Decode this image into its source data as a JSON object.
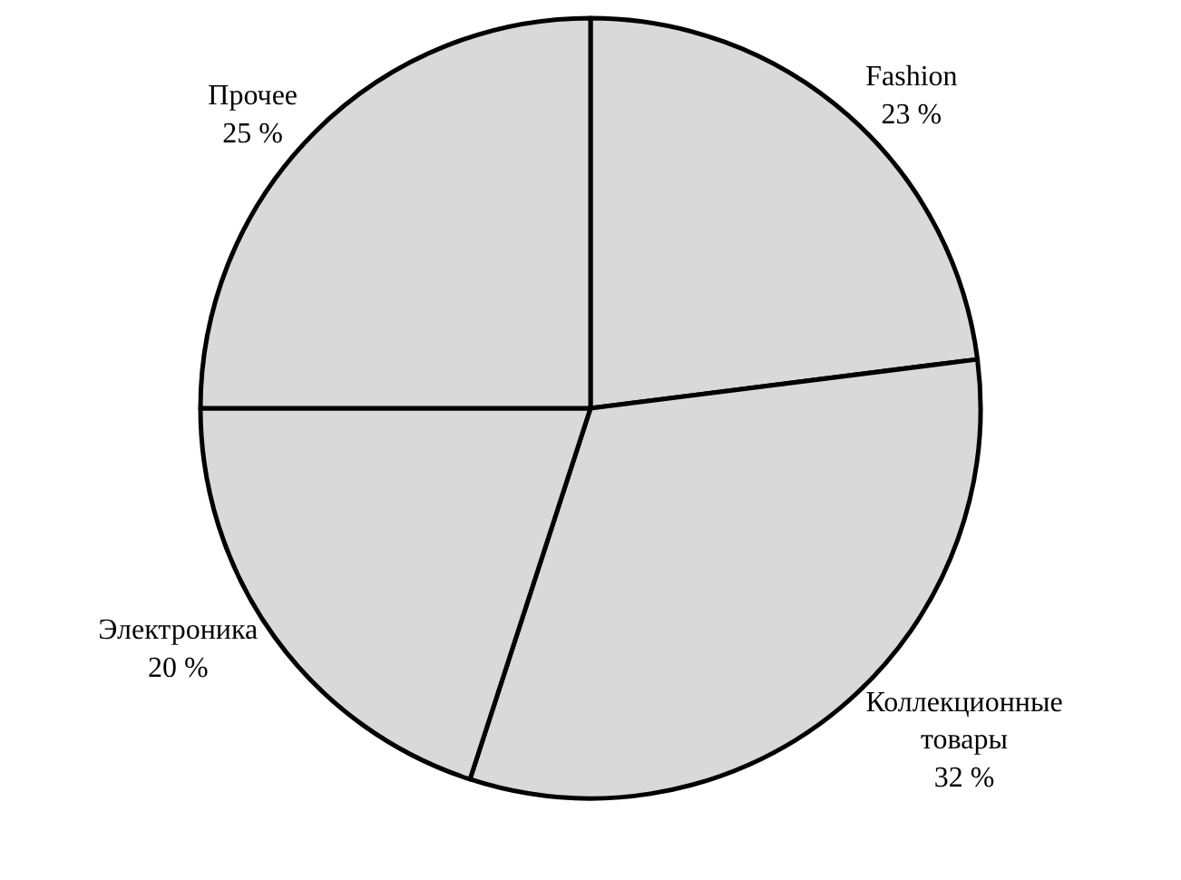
{
  "chart_data": {
    "type": "pie",
    "categories": [
      "Fashion",
      "Коллекционные товары",
      "Электроника",
      "Прочее"
    ],
    "values": [
      23,
      32,
      20,
      25
    ],
    "value_labels": [
      "23 %",
      "32 %",
      "20 %",
      "25 %"
    ],
    "colors": [
      "#d9d9d9",
      "#d9d9d9",
      "#d9d9d9",
      "#d9d9d9"
    ],
    "legend": false
  }
}
